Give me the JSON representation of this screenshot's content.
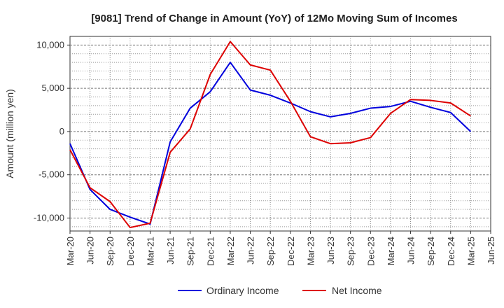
{
  "chart_data": {
    "type": "line",
    "title": "[9081]  Trend of Change in Amount (YoY) of 12Mo Moving Sum of Incomes",
    "xlabel": "",
    "ylabel": "Amount (million yen)",
    "ylim": [
      -11500,
      11000
    ],
    "yticks": [
      10000,
      5000,
      0,
      -5000,
      -10000
    ],
    "ytick_labels": [
      "10,000",
      "5,000",
      "0",
      "-5,000",
      "-10,000"
    ],
    "categories": [
      "Mar-20",
      "Jun-20",
      "Sep-20",
      "Dec-20",
      "Mar-21",
      "Jun-21",
      "Sep-21",
      "Dec-21",
      "Mar-22",
      "Jun-22",
      "Sep-22",
      "Dec-22",
      "Mar-23",
      "Jun-23",
      "Sep-23",
      "Dec-23",
      "Mar-24",
      "Jun-24",
      "Sep-24",
      "Dec-24",
      "Mar-25",
      "Jun-25"
    ],
    "series": [
      {
        "name": "Ordinary Income",
        "color": "#0000dd",
        "values": [
          -1400,
          -6700,
          -9000,
          -9900,
          -10700,
          -1200,
          2700,
          4600,
          8000,
          4800,
          4200,
          3300,
          2300,
          1700,
          2100,
          2700,
          2900,
          3500,
          2800,
          2200,
          0,
          null
        ]
      },
      {
        "name": "Net Income",
        "color": "#dd0000",
        "values": [
          -2100,
          -6500,
          -8100,
          -11100,
          -10600,
          -2400,
          300,
          6600,
          10400,
          7700,
          7100,
          3500,
          -600,
          -1400,
          -1300,
          -700,
          2100,
          3700,
          3600,
          3300,
          1800,
          null
        ]
      }
    ],
    "legend": {
      "placement": "bottom-center",
      "entries": [
        "Ordinary Income",
        "Net Income"
      ]
    },
    "grid": true
  }
}
